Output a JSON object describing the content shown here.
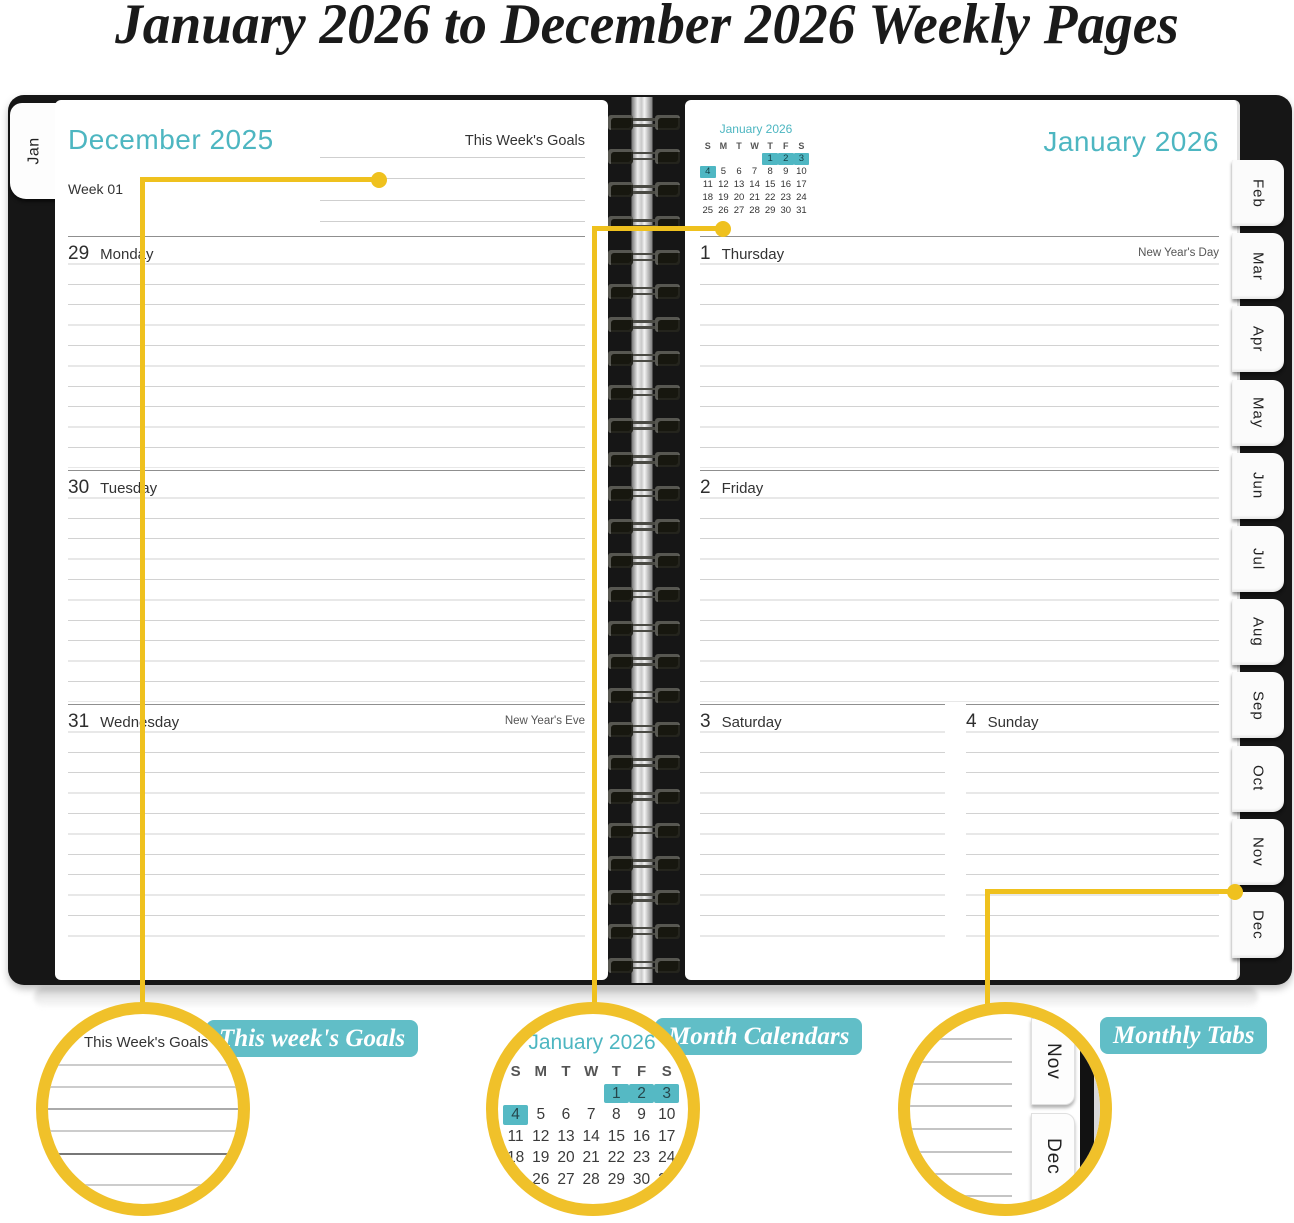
{
  "title": "January 2026 to December 2026 Weekly Pages",
  "colors": {
    "teal_accent": "#4db6c1",
    "badge_teal": "#61bec7",
    "callout_yellow": "#efc11e",
    "cover_black": "#161616",
    "highlight_teal": "#4fb7c3"
  },
  "left_page": {
    "tab": "Jan",
    "month_title": "December 2025",
    "goals_label": "This Week's Goals",
    "week_label": "Week 01",
    "days": [
      {
        "num": "29",
        "name": "Monday",
        "note": ""
      },
      {
        "num": "30",
        "name": "Tuesday",
        "note": ""
      },
      {
        "num": "31",
        "name": "Wednesday",
        "note": "New Year's Eve"
      }
    ]
  },
  "right_page": {
    "month_title": "January 2026",
    "mini_calendar": {
      "title": "January 2026",
      "weekday_header": [
        "S",
        "M",
        "T",
        "W",
        "T",
        "F",
        "S"
      ],
      "weeks": [
        [
          "",
          "",
          "",
          "",
          "1",
          "2",
          "3"
        ],
        [
          "4",
          "5",
          "6",
          "7",
          "8",
          "9",
          "10"
        ],
        [
          "11",
          "12",
          "13",
          "14",
          "15",
          "16",
          "17"
        ],
        [
          "18",
          "19",
          "20",
          "21",
          "22",
          "23",
          "24"
        ],
        [
          "25",
          "26",
          "27",
          "28",
          "29",
          "30",
          "31"
        ]
      ],
      "highlighted": [
        "1",
        "2",
        "3",
        "4"
      ]
    },
    "days": [
      {
        "num": "1",
        "name": "Thursday",
        "note": "New Year's Day"
      },
      {
        "num": "2",
        "name": "Friday",
        "note": ""
      },
      {
        "num": "3",
        "name": "Saturday",
        "note": ""
      },
      {
        "num": "4",
        "name": "Sunday",
        "note": ""
      }
    ]
  },
  "month_tabs": [
    "Feb",
    "Mar",
    "Apr",
    "May",
    "Jun",
    "Jul",
    "Aug",
    "Sep",
    "Oct",
    "Nov",
    "Dec"
  ],
  "callouts": {
    "goals": {
      "badge": "This week's Goals",
      "circle_title": "This Week's Goals"
    },
    "calendar": {
      "badge": "Month Calendars"
    },
    "tabs": {
      "badge": "Monthly Tabs",
      "tab_labels": [
        "Nov",
        "Dec"
      ]
    }
  }
}
